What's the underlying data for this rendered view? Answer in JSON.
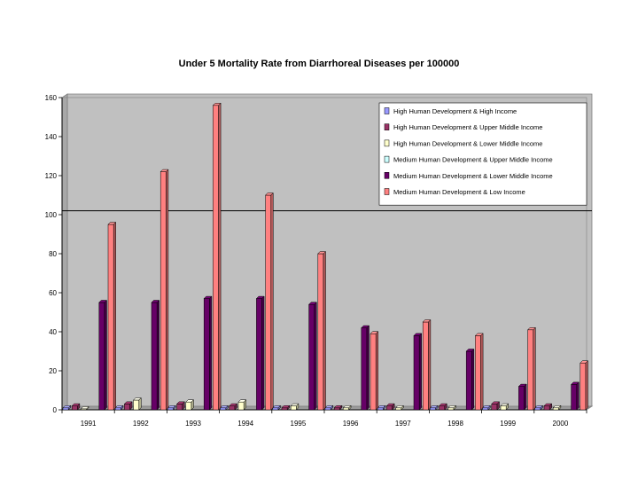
{
  "chart_data": {
    "type": "bar",
    "title": "Under 5 Mortality Rate from Diarrhoreal Diseases per 100000",
    "xlabel": "",
    "ylabel": "",
    "ylim": [
      0,
      160
    ],
    "yticks": [
      0,
      20,
      40,
      60,
      80,
      100,
      120,
      140,
      160
    ],
    "grid": false,
    "legend_position": "top-right",
    "categories": [
      "1991",
      "1992",
      "1993",
      "1994",
      "1995",
      "1996",
      "1997",
      "1998",
      "1999",
      "2000"
    ],
    "series": [
      {
        "name": "High Human Development & High Income",
        "color": "#9999ff",
        "values": [
          1,
          1,
          1,
          1,
          1,
          1,
          1,
          1,
          1,
          1
        ]
      },
      {
        "name": "High Human Development & Upper Middle Income",
        "color": "#993366",
        "values": [
          2,
          3,
          3,
          2,
          1,
          1,
          2,
          2,
          3,
          2
        ]
      },
      {
        "name": "High Human Development & Lower Middle Income",
        "color": "#ffffcc",
        "values": [
          0.5,
          5,
          4,
          4,
          2,
          1,
          1,
          1,
          2,
          1
        ]
      },
      {
        "name": "Medium Human Development & Upper Middle Income",
        "color": "#ccffff",
        "values": [
          0,
          0,
          0,
          0,
          0,
          0,
          0,
          0,
          0,
          0
        ]
      },
      {
        "name": "Medium Human Development & Lower Middle Income",
        "color": "#660066",
        "values": [
          55,
          55,
          57,
          57,
          54,
          42,
          38,
          30,
          12,
          13
        ]
      },
      {
        "name": "Medium Human Development & Low Income",
        "color": "#ff8080",
        "values": [
          95,
          122,
          156,
          110,
          80,
          39,
          45,
          38,
          41,
          24
        ]
      }
    ]
  }
}
